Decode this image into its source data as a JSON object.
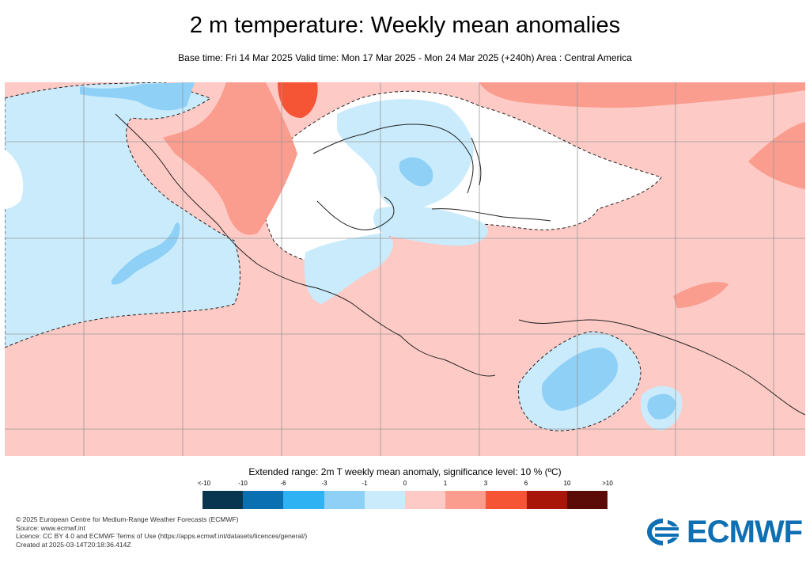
{
  "header": {
    "title": "2 m temperature: Weekly mean anomalies",
    "subtitle": "Base time: Fri 14 Mar 2025 Valid time: Mon 17 Mar 2025 - Mon 24 Mar 2025 (+240h) Area : Central America"
  },
  "legend": {
    "title": "Extended range: 2m T weekly mean anomaly, significance level: 10 % (ºC)",
    "ticks": [
      "<-10",
      "-10",
      "-6",
      "-3",
      "-1",
      "0",
      "1",
      "3",
      "6",
      "10",
      ">10"
    ],
    "colors": [
      "#08354f",
      "#0b70b2",
      "#2fb2f4",
      "#8fd0f7",
      "#c9ebfc",
      "#fdcac5",
      "#fa9c8e",
      "#f55435",
      "#a8160a",
      "#5b0c06"
    ]
  },
  "footer": {
    "copyright": "© 2025 European Centre for Medium-Range Weather Forecasts (ECMWF)",
    "source": "Source: www.ecmwf.int",
    "licence": "Licence: CC BY 4.0 and ECMWF Terms of Use (https://apps.ecmwf.int/datasets/licences/general/)",
    "created": "Created at 2025-03-14T20:18:36.414Z"
  },
  "logo": {
    "text": "ECMWF",
    "color": "#0f6fb3"
  },
  "map": {
    "region": "Central America",
    "colors": {
      "ocean_light_red": "#fdcac5",
      "light_blue": "#c9ebfc",
      "mid_blue": "#8fd0f7",
      "mid_red": "#fa9c8e",
      "strong_red": "#f55435",
      "neutral": "#ffffff",
      "grid": "#999999",
      "coast": "#222222"
    }
  }
}
